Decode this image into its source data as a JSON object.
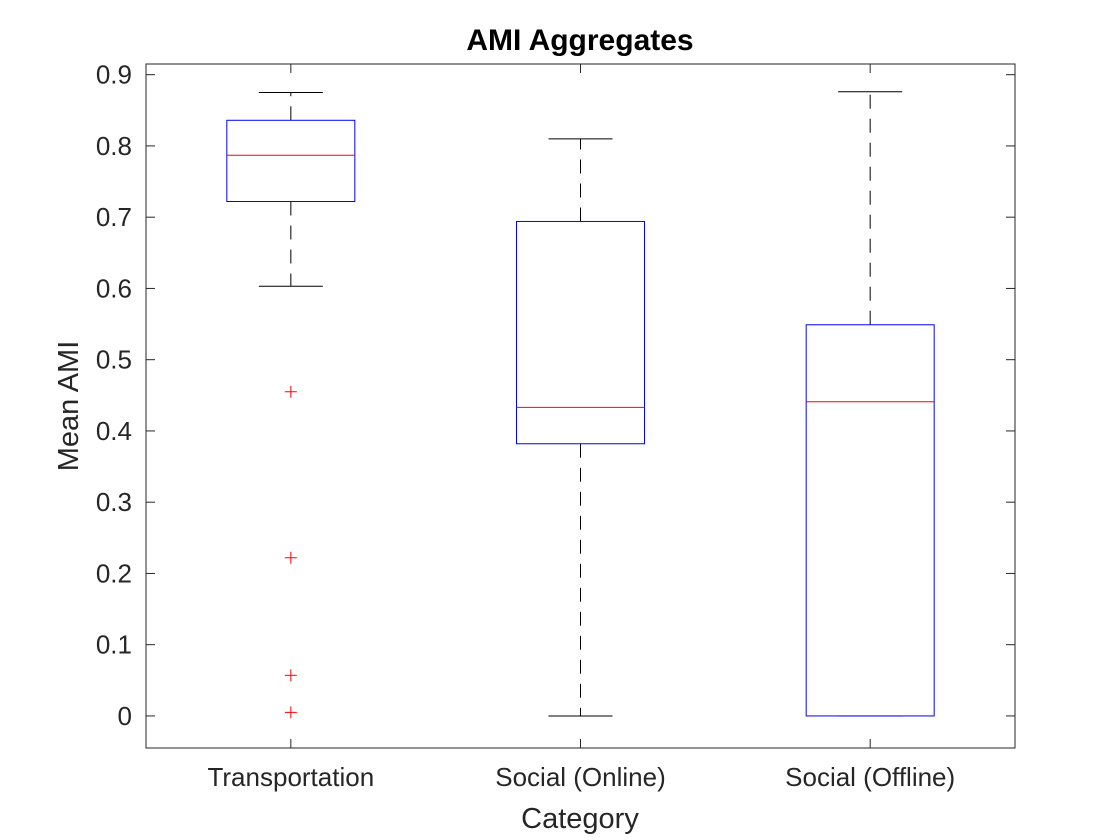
{
  "chart_data": {
    "type": "box",
    "title": "AMI Aggregates",
    "xlabel": "Category",
    "ylabel": "Mean AMI",
    "categories": [
      "Transportation",
      "Social (Online)",
      "Social (Offline)"
    ],
    "ylim": [
      -0.045,
      0.915
    ],
    "yticks": [
      0,
      0.1,
      0.2,
      0.3,
      0.4,
      0.5,
      0.6,
      0.7,
      0.8,
      0.9
    ],
    "ytick_labels": [
      "0",
      "0.1",
      "0.2",
      "0.3",
      "0.4",
      "0.5",
      "0.6",
      "0.7",
      "0.8",
      "0.9"
    ],
    "grid": false,
    "boxes": [
      {
        "category": "Transportation",
        "whisker_low": 0.603,
        "q1": 0.722,
        "median": 0.787,
        "q3": 0.836,
        "whisker_high": 0.875,
        "outliers": [
          0.455,
          0.222,
          0.057,
          0.005
        ]
      },
      {
        "category": "Social (Online)",
        "whisker_low": 0.0,
        "q1": 0.382,
        "median": 0.433,
        "q3": 0.694,
        "whisker_high": 0.81,
        "outliers": []
      },
      {
        "category": "Social (Offline)",
        "whisker_low": 0.0,
        "q1": 0.0,
        "median": 0.441,
        "q3": 0.549,
        "whisker_high": 0.876,
        "outliers": []
      }
    ],
    "colors": {
      "box": "#0000ff",
      "median": "#ff0000",
      "whisker": "#000000",
      "outlier": "#ff0000",
      "axes": "#262626"
    }
  }
}
